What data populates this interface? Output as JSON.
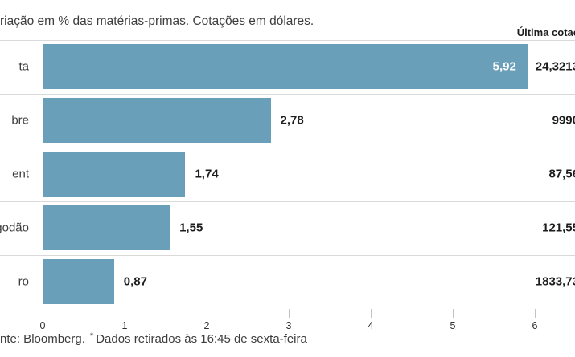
{
  "header": {
    "title": "riação em % das matérias-primas. Cotações em dólares.",
    "last_quote_column_label": "Última cotaç"
  },
  "chart_data": {
    "type": "bar",
    "orientation": "horizontal",
    "title": "riação em % das matérias-primas. Cotações em dólares.",
    "categories": [
      "ta",
      "bre",
      "ent",
      "godão",
      "ro"
    ],
    "series": [
      {
        "name": "Variação em %",
        "values": [
          5.92,
          2.78,
          1.74,
          1.55,
          0.87
        ],
        "value_labels": [
          "5,92",
          "2,78",
          "1,74",
          "1,55",
          "0,87"
        ]
      },
      {
        "name": "Última cotaç",
        "value_labels": [
          "24,3213",
          "9990",
          "87,56",
          "121,55",
          "1833,73"
        ]
      }
    ],
    "xlim": [
      0,
      6
    ],
    "x_ticks": [
      "0",
      "1",
      "2",
      "3",
      "4",
      "5",
      "6"
    ],
    "grid": false,
    "legend": "none",
    "colors": {
      "bar": "#699fb9",
      "bar_label_inside": "#ffffff",
      "bar_label_outside": "#1d1d1d",
      "separator": "#d9d9d9",
      "axis_line": "#9b9b9b"
    }
  },
  "footer": {
    "source": "nte: Bloomberg.",
    "note_marker": "*",
    "note": "Dados retirados às 16:45 de sexta-feira"
  }
}
